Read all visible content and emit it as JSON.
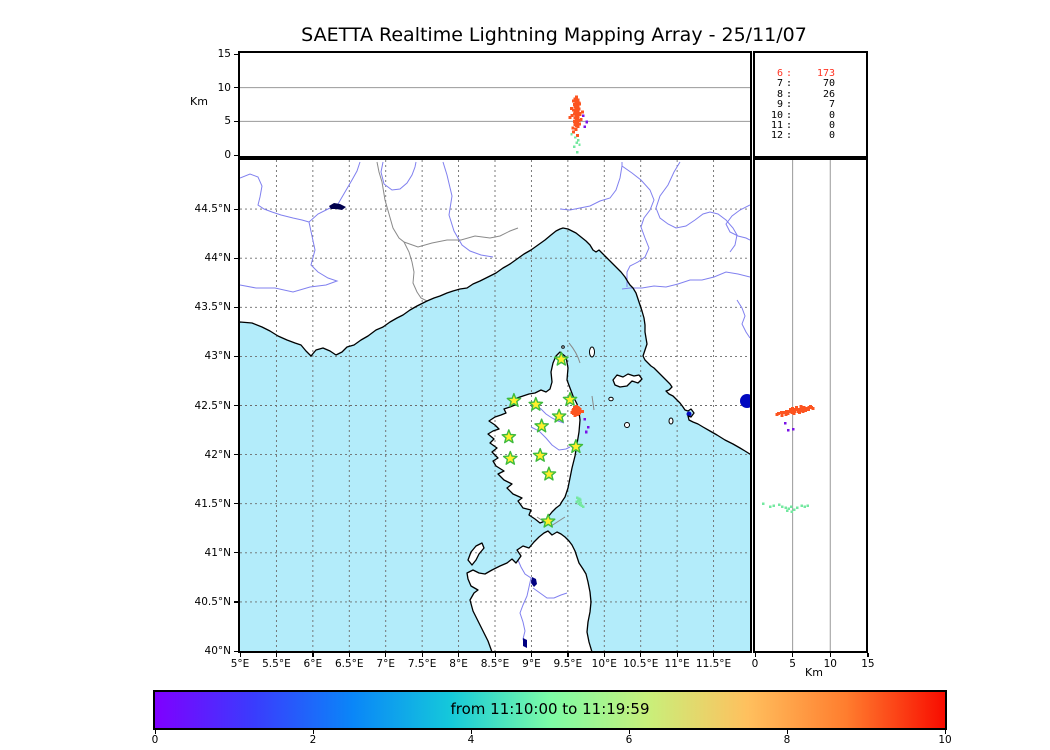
{
  "title": "SAETTA Realtime Lightning Mapping Array - 25/11/07",
  "colorbar": {
    "label": "from 11:10:00 to 11:19:59",
    "ticks": [
      0,
      2,
      4,
      6,
      8,
      10
    ],
    "range": [
      0,
      10
    ],
    "gradient_stops": [
      "#7f00ff",
      "#3a3cfd",
      "#0a86f8",
      "#15c9da",
      "#7dfca6",
      "#c9ef7a",
      "#ffc05e",
      "#ff7d2e",
      "#f80c00"
    ]
  },
  "axes": {
    "top_ylabel": "Km",
    "side_xlabel": "Km",
    "top_yticks": [
      0,
      5,
      10,
      15
    ],
    "side_xticks": [
      0,
      5,
      10,
      15
    ],
    "lon_ticks": [
      {
        "v": 5,
        "t": "5°E"
      },
      {
        "v": 5.5,
        "t": "5.5°E"
      },
      {
        "v": 6,
        "t": "6°E"
      },
      {
        "v": 6.5,
        "t": "6.5°E"
      },
      {
        "v": 7,
        "t": "7°E"
      },
      {
        "v": 7.5,
        "t": "7.5°E"
      },
      {
        "v": 8,
        "t": "8°E"
      },
      {
        "v": 8.5,
        "t": "8.5°E"
      },
      {
        "v": 9,
        "t": "9°E"
      },
      {
        "v": 9.5,
        "t": "9.5°E"
      },
      {
        "v": 10,
        "t": "10°E"
      },
      {
        "v": 10.5,
        "t": "10.5°E"
      },
      {
        "v": 11,
        "t": "11°E"
      },
      {
        "v": 11.5,
        "t": "11.5°E"
      }
    ],
    "lat_ticks": [
      {
        "v": 44.5,
        "t": "44.5°N"
      },
      {
        "v": 44,
        "t": "44°N"
      },
      {
        "v": 43.5,
        "t": "43.5°N"
      },
      {
        "v": 43,
        "t": "43°N"
      },
      {
        "v": 42.5,
        "t": "42.5°N"
      },
      {
        "v": 42,
        "t": "42°N"
      },
      {
        "v": 41.5,
        "t": "41.5°N"
      },
      {
        "v": 41,
        "t": "41°N"
      },
      {
        "v": 40.5,
        "t": "40.5°N"
      },
      {
        "v": 40,
        "t": "40°N"
      }
    ]
  },
  "stats": {
    "rows": [
      {
        "label": "6",
        "value": "173",
        "highlight": true
      },
      {
        "label": "7",
        "value": "70",
        "highlight": false
      },
      {
        "label": "8",
        "value": "26",
        "highlight": false
      },
      {
        "label": "9",
        "value": "7",
        "highlight": false
      },
      {
        "label": "10",
        "value": "0",
        "highlight": false
      },
      {
        "label": "11",
        "value": "0",
        "highlight": false
      },
      {
        "label": "12",
        "value": "0",
        "highlight": false
      }
    ]
  },
  "colors": {
    "sea": "#b3ecfa",
    "land": "#ffffff",
    "coast": "#000000",
    "grid": "#6b6b6b",
    "panel_grid": "#999999",
    "river": "#8080ef",
    "border_line": "#8a8a8a",
    "lake_dark": "#00004d",
    "lake_blue": "#0008c0",
    "star_fill": "#ffef2b",
    "star_edge": "#3dbb3d",
    "stats_highlight": "#ff3322",
    "src_early": "#7a12e8",
    "src_mid": "#74e8a0",
    "src_late": "#fc5420"
  },
  "chart_data": {
    "type": "scatter",
    "title": "SAETTA Realtime Lightning Mapping Array - 25/11/07",
    "layout_note": "Three linked panels: altitude(km) vs longitude (top), map lon/lat (center), altitude(km) vs latitude (right); colorbar encodes time 11:10:00-11:19:59 over 0-10 min",
    "map_lon_range": [
      5,
      12
    ],
    "map_lat_range": [
      40,
      45
    ],
    "alt_range_km": [
      0,
      15
    ],
    "panel_gridlines_km": [
      5,
      10
    ],
    "counts_by_km_level": [
      [
        "6",
        173
      ],
      [
        "7",
        70
      ],
      [
        "8",
        26
      ],
      [
        "9",
        7
      ],
      [
        "10",
        0
      ],
      [
        "11",
        0
      ],
      [
        "12",
        0
      ]
    ],
    "stations_lonlat": [
      [
        9.41,
        42.97
      ],
      [
        8.76,
        42.55
      ],
      [
        9.06,
        42.51
      ],
      [
        9.53,
        42.56
      ],
      [
        9.38,
        42.39
      ],
      [
        9.14,
        42.29
      ],
      [
        8.69,
        42.18
      ],
      [
        9.61,
        42.08
      ],
      [
        8.71,
        41.96
      ],
      [
        9.12,
        41.99
      ],
      [
        9.24,
        41.8
      ],
      [
        9.23,
        41.32
      ]
    ],
    "series": [
      {
        "name": "vhf-sources-late (orange, ~11:19)",
        "color_key": "src_late",
        "size": 3.0,
        "map_lonlat": [
          [
            9.58,
            42.46
          ],
          [
            9.6,
            42.47
          ],
          [
            9.62,
            42.47
          ],
          [
            9.64,
            42.46
          ],
          [
            9.66,
            42.45
          ],
          [
            9.61,
            42.45
          ],
          [
            9.59,
            42.44
          ],
          [
            9.63,
            42.44
          ],
          [
            9.65,
            42.44
          ],
          [
            9.6,
            42.43
          ],
          [
            9.62,
            42.43
          ],
          [
            9.64,
            42.42
          ],
          [
            9.58,
            42.42
          ],
          [
            9.61,
            42.41
          ],
          [
            9.63,
            42.41
          ],
          [
            9.66,
            42.43
          ],
          [
            9.68,
            42.44
          ],
          [
            9.57,
            42.45
          ],
          [
            9.59,
            42.48
          ],
          [
            9.62,
            42.49
          ],
          [
            9.65,
            42.47
          ],
          [
            9.67,
            42.46
          ],
          [
            9.56,
            42.43
          ],
          [
            9.6,
            42.4
          ],
          [
            9.64,
            42.48
          ],
          [
            9.7,
            42.44
          ],
          [
            9.61,
            42.46
          ],
          [
            9.63,
            42.45
          ],
          [
            9.65,
            42.42
          ],
          [
            9.59,
            42.42
          ]
        ],
        "lon_alt": [
          [
            9.62,
            8.6
          ],
          [
            9.6,
            8.3
          ],
          [
            9.64,
            8.2
          ],
          [
            9.61,
            7.9
          ],
          [
            9.63,
            7.8
          ],
          [
            9.65,
            7.7
          ],
          [
            9.59,
            7.5
          ],
          [
            9.62,
            7.4
          ],
          [
            9.64,
            7.3
          ],
          [
            9.6,
            7.2
          ],
          [
            9.63,
            7.1
          ],
          [
            9.61,
            6.9
          ],
          [
            9.65,
            6.8
          ],
          [
            9.58,
            6.7
          ],
          [
            9.62,
            6.6
          ],
          [
            9.64,
            6.5
          ],
          [
            9.6,
            6.4
          ],
          [
            9.63,
            6.3
          ],
          [
            9.66,
            6.2
          ],
          [
            9.59,
            6.1
          ],
          [
            9.62,
            6.0
          ],
          [
            9.61,
            5.8
          ],
          [
            9.64,
            5.7
          ],
          [
            9.6,
            5.5
          ],
          [
            9.63,
            5.4
          ],
          [
            9.62,
            5.2
          ],
          [
            9.65,
            5.1
          ],
          [
            9.59,
            5.0
          ],
          [
            9.61,
            4.8
          ],
          [
            9.63,
            4.7
          ],
          [
            9.6,
            4.5
          ],
          [
            9.62,
            4.3
          ],
          [
            9.64,
            4.2
          ],
          [
            9.57,
            4.0
          ],
          [
            9.61,
            3.8
          ],
          [
            9.55,
            6.9
          ],
          [
            9.67,
            6.0
          ],
          [
            9.68,
            5.3
          ],
          [
            9.56,
            5.9
          ],
          [
            9.66,
            7.6
          ],
          [
            9.58,
            8.0
          ],
          [
            9.53,
            5.6
          ],
          [
            9.7,
            6.4
          ],
          [
            9.66,
            4.6
          ],
          [
            9.58,
            3.4
          ],
          [
            9.63,
            2.9
          ]
        ],
        "alt_lat": [
          [
            3.1,
            42.42
          ],
          [
            3.5,
            42.43
          ],
          [
            3.9,
            42.43
          ],
          [
            4.2,
            42.44
          ],
          [
            4.5,
            42.44
          ],
          [
            4.8,
            42.45
          ],
          [
            5.1,
            42.45
          ],
          [
            5.4,
            42.46
          ],
          [
            5.7,
            42.46
          ],
          [
            6.0,
            42.46
          ],
          [
            6.3,
            42.47
          ],
          [
            6.6,
            42.47
          ],
          [
            6.9,
            42.47
          ],
          [
            7.2,
            42.48
          ],
          [
            7.5,
            42.48
          ],
          [
            4.4,
            42.42
          ],
          [
            4.9,
            42.43
          ],
          [
            5.3,
            42.44
          ],
          [
            5.8,
            42.44
          ],
          [
            6.2,
            42.45
          ],
          [
            6.7,
            42.45
          ],
          [
            7.1,
            42.46
          ],
          [
            3.6,
            42.4
          ],
          [
            4.1,
            42.41
          ],
          [
            5.0,
            42.47
          ],
          [
            5.5,
            42.48
          ],
          [
            6.1,
            42.49
          ],
          [
            6.5,
            42.48
          ],
          [
            7.7,
            42.47
          ],
          [
            2.9,
            42.41
          ],
          [
            7.4,
            42.49
          ],
          [
            5.9,
            42.43
          ],
          [
            6.4,
            42.44
          ],
          [
            4.7,
            42.46
          ],
          [
            5.2,
            42.42
          ]
        ]
      },
      {
        "name": "vhf-sources-mid (green, ~11:15)",
        "color_key": "src_mid",
        "size": 2.4,
        "map_lonlat": [
          [
            9.63,
            41.56
          ],
          [
            9.65,
            41.55
          ],
          [
            9.67,
            41.54
          ],
          [
            9.64,
            41.53
          ],
          [
            9.66,
            41.52
          ],
          [
            9.68,
            41.51
          ],
          [
            9.65,
            41.5
          ],
          [
            9.67,
            41.49
          ],
          [
            9.62,
            41.52
          ],
          [
            9.69,
            41.48
          ],
          [
            9.71,
            41.47
          ],
          [
            9.66,
            41.55
          ]
        ],
        "lon_alt": [
          [
            9.6,
            2.6
          ],
          [
            9.64,
            2.2
          ],
          [
            9.62,
            1.8
          ],
          [
            9.66,
            1.5
          ],
          [
            9.59,
            1.2
          ],
          [
            9.63,
            0.4
          ],
          [
            9.55,
            3.1
          ]
        ],
        "alt_lat": [
          [
            1.1,
            41.5
          ],
          [
            2.5,
            41.48
          ],
          [
            3.2,
            41.49
          ],
          [
            3.6,
            41.47
          ],
          [
            4.1,
            41.46
          ],
          [
            4.5,
            41.45
          ],
          [
            4.8,
            41.47
          ],
          [
            5.2,
            41.44
          ],
          [
            5.6,
            41.46
          ],
          [
            6.2,
            41.48
          ],
          [
            6.6,
            41.47
          ],
          [
            7.0,
            41.48
          ],
          [
            4.3,
            41.43
          ],
          [
            4.9,
            41.42
          ],
          [
            2.0,
            41.47
          ]
        ]
      },
      {
        "name": "vhf-sources-early (purple, ~11:10)",
        "color_key": "src_early",
        "size": 2.6,
        "map_lonlat": [
          [
            9.73,
            42.36
          ],
          [
            9.78,
            42.28
          ],
          [
            9.75,
            42.23
          ]
        ],
        "lon_alt": [
          [
            9.71,
            5.8
          ],
          [
            9.76,
            4.9
          ],
          [
            9.73,
            4.2
          ]
        ],
        "alt_lat": [
          [
            4.0,
            42.32
          ],
          [
            4.4,
            42.25
          ],
          [
            5.1,
            42.26
          ]
        ]
      }
    ]
  }
}
